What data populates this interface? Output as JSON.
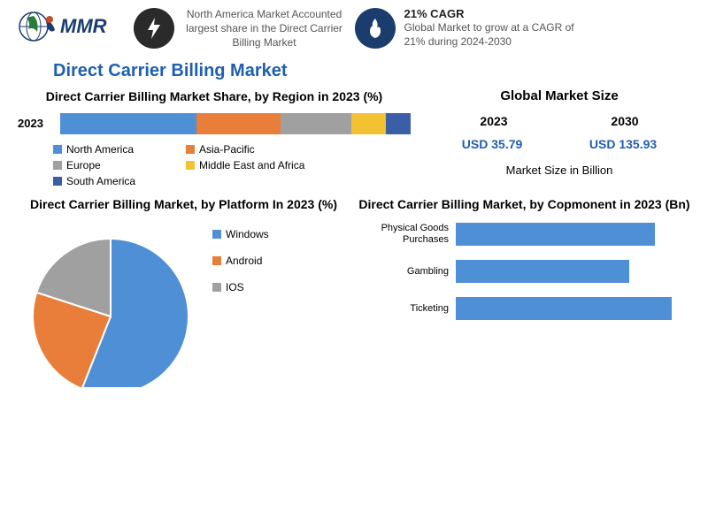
{
  "header": {
    "logo_text": "MMR",
    "fact1": {
      "title": "",
      "text": "North America Market Accounted largest share in the Direct Carrier Billing Market"
    },
    "fact2": {
      "title": "21% CAGR",
      "text": "Global Market to grow at a CAGR of 21% during 2024-2030"
    }
  },
  "main_title": "Direct Carrier Billing Market",
  "region_chart": {
    "title": "Direct Carrier Billing Market Share, by Region in 2023 (%)",
    "year_label": "2023",
    "segments": [
      {
        "label": "North America",
        "value": 39,
        "color": "#4f8fd6"
      },
      {
        "label": "Asia-Pacific",
        "value": 24,
        "color": "#e87e3a"
      },
      {
        "label": "Europe",
        "value": 20,
        "color": "#a0a0a0"
      },
      {
        "label": "Middle East and Africa",
        "value": 10,
        "color": "#f2c233"
      },
      {
        "label": "South America",
        "value": 7,
        "color": "#3a5fa8"
      }
    ]
  },
  "market_size": {
    "title": "Global Market Size",
    "years": [
      "2023",
      "2030"
    ],
    "values": [
      "USD 35.79",
      "USD 135.93"
    ],
    "subtitle": "Market Size in Billion"
  },
  "platform_chart": {
    "title": "Direct Carrier Billing Market, by Platform In 2023 (%)",
    "slices": [
      {
        "label": "Windows",
        "value": 56,
        "color": "#4f8fd6"
      },
      {
        "label": "Android",
        "value": 24,
        "color": "#e87e3a"
      },
      {
        "label": "IOS",
        "value": 20,
        "color": "#a0a0a0"
      }
    ]
  },
  "component_chart": {
    "title": "Direct Carrier Billing Market, by Copmonent in 2023 (Bn)",
    "bars": [
      {
        "label": "Physical Goods Purchases",
        "value": 85,
        "color": "#4f8fd6"
      },
      {
        "label": "Gambling",
        "value": 74,
        "color": "#4f8fd6"
      },
      {
        "label": "Ticketing",
        "value": 92,
        "color": "#4f8fd6"
      }
    ],
    "max": 100
  },
  "colors": {
    "title_blue": "#1f5fb0",
    "text_gray": "#555555",
    "background": "#ffffff"
  }
}
